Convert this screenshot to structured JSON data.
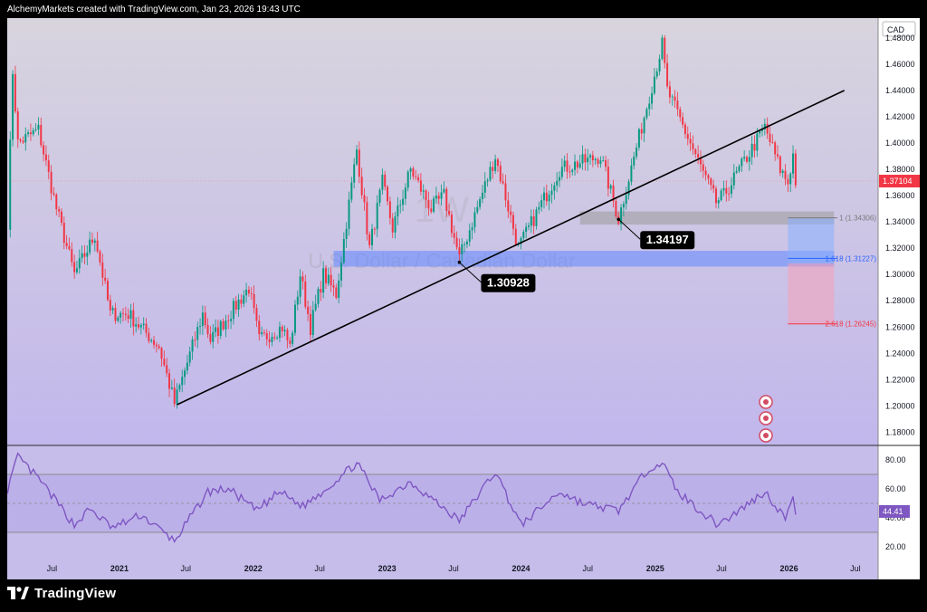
{
  "header": {
    "attribution": "AlchemyMarkets created with TradingView.com, Jan 23, 2026 19:43 UTC"
  },
  "footer": {
    "brand": "TradingView"
  },
  "colors": {
    "up": "#089981",
    "down": "#f23645",
    "trendline": "#000000",
    "support_zone": "#5f87ff",
    "resistance_zone": "#9b9b9b",
    "fib_line_1": "#7a7a7a",
    "fib_line_1618": "#2962ff",
    "fib_line_2618": "#f23645",
    "rsi_line": "#7e57c2",
    "price_badge": "#f23645"
  },
  "watermark": {
    "symbol": "1W",
    "description": "U.S. Dollar / Canadian Dollar"
  },
  "chart_data": [
    {
      "type": "candlestick",
      "timeframe": "weekly",
      "currency_label": "CAD",
      "ylim": [
        1.17,
        1.495
      ],
      "y_ticks": [
        "1.48000",
        "1.46000",
        "1.44000",
        "1.42000",
        "1.40000",
        "1.38000",
        "1.36000",
        "1.34000",
        "1.32000",
        "1.30000",
        "1.28000",
        "1.26000",
        "1.24000",
        "1.22000",
        "1.20000",
        "1.18000"
      ],
      "x_labels": [
        "Jul",
        "2021",
        "Jul",
        "2022",
        "Jul",
        "2023",
        "Jul",
        "2024",
        "Jul",
        "2025",
        "Jul",
        "2026",
        "Jul"
      ],
      "x_start": "2020-03",
      "x_end": "2026-09",
      "current_price": "1.37104",
      "swing_path": [
        [
          "2020-03-02",
          1.34
        ],
        [
          "2020-03-16",
          1.455
        ],
        [
          "2020-03-30",
          1.4
        ],
        [
          "2020-05-25",
          1.41
        ],
        [
          "2020-07-13",
          1.35
        ],
        [
          "2020-08-31",
          1.3
        ],
        [
          "2020-10-26",
          1.33
        ],
        [
          "2020-12-07",
          1.27
        ],
        [
          "2021-01-25",
          1.27
        ],
        [
          "2021-04-19",
          1.245
        ],
        [
          "2021-05-31",
          1.202
        ],
        [
          "2021-08-16",
          1.27
        ],
        [
          "2021-09-06",
          1.25
        ],
        [
          "2021-12-20",
          1.29
        ],
        [
          "2022-01-17",
          1.25
        ],
        [
          "2022-03-21",
          1.26
        ],
        [
          "2022-04-11",
          1.245
        ],
        [
          "2022-05-09",
          1.3
        ],
        [
          "2022-06-06",
          1.26
        ],
        [
          "2022-07-11",
          1.3
        ],
        [
          "2022-08-15",
          1.285
        ],
        [
          "2022-10-10",
          1.395
        ],
        [
          "2022-11-14",
          1.32
        ],
        [
          "2022-12-19",
          1.37
        ],
        [
          "2023-01-16",
          1.335
        ],
        [
          "2023-03-06",
          1.38
        ],
        [
          "2023-05-01",
          1.35
        ],
        [
          "2023-06-05",
          1.36
        ],
        [
          "2023-07-17",
          1.312
        ],
        [
          "2023-10-23",
          1.39
        ],
        [
          "2023-12-25",
          1.32
        ],
        [
          "2024-04-15",
          1.38
        ],
        [
          "2024-08-05",
          1.39
        ],
        [
          "2024-09-23",
          1.342
        ],
        [
          "2025-01-20",
          1.475
        ],
        [
          "2025-02-03",
          1.44
        ],
        [
          "2025-06-16",
          1.355
        ],
        [
          "2025-07-07",
          1.36
        ],
        [
          "2025-10-27",
          1.412
        ],
        [
          "2025-12-08",
          1.38
        ],
        [
          "2025-12-29",
          1.37
        ],
        [
          "2026-01-12",
          1.391
        ],
        [
          "2026-01-19",
          1.37104
        ]
      ],
      "trendline": {
        "from": [
          "2021-06-07",
          1.201
        ],
        "to": [
          "2026-06-01",
          1.44
        ]
      },
      "zones": [
        {
          "role": "resistance",
          "from": "2024-06-10",
          "to": "2026-05-04",
          "low": 1.338,
          "high": 1.348
        },
        {
          "role": "support",
          "from": "2022-08-08",
          "to": "2026-05-04",
          "low": 1.306,
          "high": 1.318
        }
      ],
      "swing_labels": [
        {
          "text": "1.34197",
          "x": "2024-09-23",
          "price": 1.34197
        },
        {
          "text": "1.30928",
          "x": "2023-07-17",
          "price": 1.30928
        }
      ],
      "fibonacci": [
        {
          "level": "1",
          "value": "1.34306"
        },
        {
          "level": "1.618",
          "value": "1.31227"
        },
        {
          "level": "2.618",
          "value": "1.26245"
        }
      ],
      "projection": {
        "from": "2025-12-29",
        "to": "2026-05-04",
        "top": 1.343,
        "mid": 1.3085,
        "bottom": 1.262
      }
    },
    {
      "type": "line",
      "indicator": "RSI",
      "ylim": [
        10,
        90
      ],
      "y_ticks": [
        "80.00",
        "60.00",
        "40.00",
        "20.00"
      ],
      "band": [
        30,
        70
      ],
      "current_value": "44.41",
      "points": [
        [
          "2020-03-02",
          60
        ],
        [
          "2020-03-30",
          82
        ],
        [
          "2020-06-01",
          65
        ],
        [
          "2020-08-31",
          35
        ],
        [
          "2020-10-12",
          46
        ],
        [
          "2020-12-14",
          33
        ],
        [
          "2021-03-01",
          42
        ],
        [
          "2021-05-31",
          24
        ],
        [
          "2021-08-30",
          58
        ],
        [
          "2021-10-25",
          60
        ],
        [
          "2022-01-10",
          45
        ],
        [
          "2022-03-14",
          58
        ],
        [
          "2022-05-16",
          48
        ],
        [
          "2022-07-18",
          60
        ],
        [
          "2022-10-10",
          78
        ],
        [
          "2022-12-12",
          52
        ],
        [
          "2023-03-06",
          65
        ],
        [
          "2023-07-17",
          38
        ],
        [
          "2023-10-23",
          72
        ],
        [
          "2024-01-01",
          35
        ],
        [
          "2024-04-15",
          58
        ],
        [
          "2024-06-17",
          50
        ],
        [
          "2024-09-23",
          45
        ],
        [
          "2024-12-16",
          75
        ],
        [
          "2025-01-20",
          78
        ],
        [
          "2025-03-03",
          58
        ],
        [
          "2025-06-16",
          36
        ],
        [
          "2025-07-21",
          40
        ],
        [
          "2025-10-27",
          58
        ],
        [
          "2025-12-22",
          40
        ],
        [
          "2026-01-12",
          52
        ],
        [
          "2026-01-19",
          44.41
        ]
      ]
    }
  ]
}
